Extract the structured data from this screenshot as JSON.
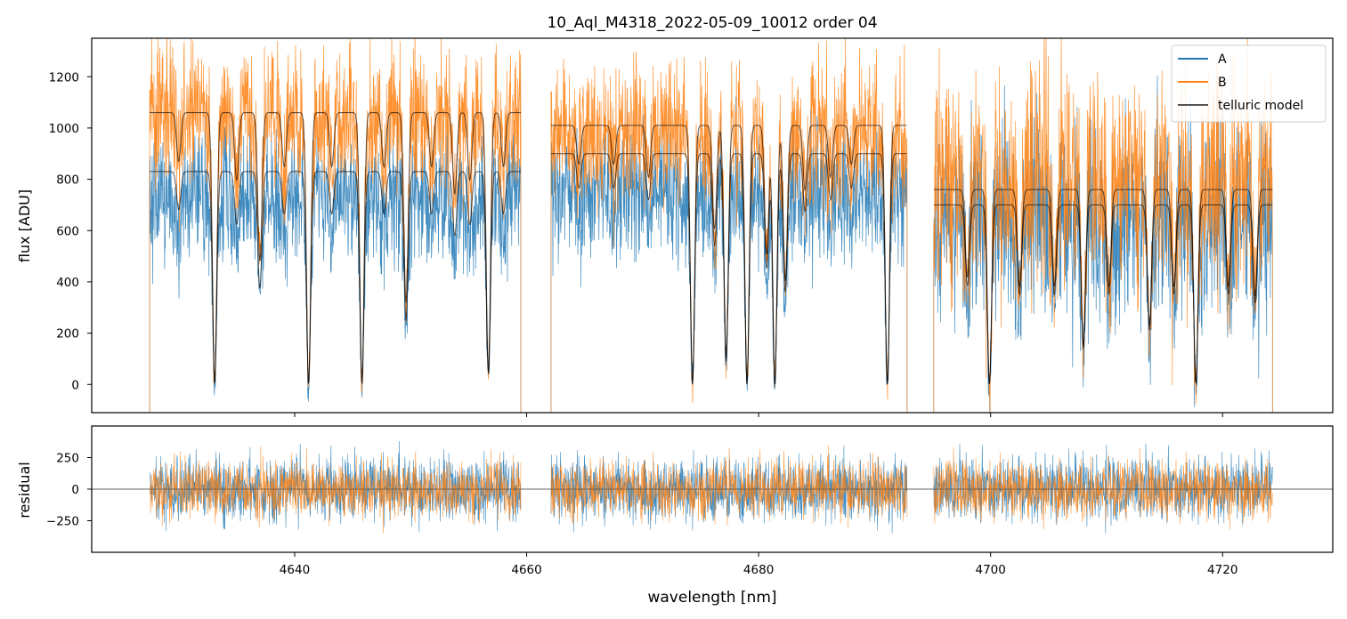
{
  "chart_data": {
    "type": "line",
    "title": "10_Aql_M4318_2022-05-09_10012  order 04",
    "xlabel": "wavelength [nm]",
    "xlim": [
      4622.5,
      4729.5
    ],
    "x_ticks": [
      4640,
      4660,
      4680,
      4700,
      4720
    ],
    "x_tick_labels": [
      "4640",
      "4660",
      "4680",
      "4700",
      "4720"
    ],
    "colors": {
      "A": "#1f77b4",
      "B": "#ff7f0e",
      "telluric model": "#000000",
      "zero_line": "#555555"
    },
    "segments": [
      [
        4627.5,
        4659.5
      ],
      [
        4662.1,
        4692.8
      ],
      [
        4695.1,
        4724.3
      ]
    ],
    "legend": {
      "placement": "top-right",
      "entries": [
        "A",
        "B",
        "telluric model"
      ]
    },
    "panels": [
      {
        "name": "flux",
        "ylabel": "flux [ADU]",
        "ylim": [
          -110,
          1350
        ],
        "y_ticks": [
          0,
          200,
          400,
          600,
          800,
          1000,
          1200
        ],
        "y_tick_labels": [
          "0",
          "200",
          "400",
          "600",
          "800",
          "1000",
          "1200"
        ],
        "series": [
          {
            "name": "A",
            "continuum_by_segment": [
              730,
              760,
              660
            ],
            "noise": 130
          },
          {
            "name": "B",
            "continuum_by_segment": [
              1050,
              990,
              820
            ],
            "noise": 140
          },
          {
            "name": "telluric model",
            "continuum_A_by_segment": [
              830,
              900,
              700
            ],
            "continuum_B_by_segment": [
              1060,
              1010,
              760
            ]
          }
        ],
        "absorption_lines": [
          {
            "x": 4630.0,
            "depth": 0.18
          },
          {
            "x": 4633.1,
            "depth": 1.0
          },
          {
            "x": 4635.0,
            "depth": 0.25
          },
          {
            "x": 4637.0,
            "depth": 0.55
          },
          {
            "x": 4639.1,
            "depth": 0.2
          },
          {
            "x": 4641.2,
            "depth": 1.0
          },
          {
            "x": 4643.2,
            "depth": 0.2
          },
          {
            "x": 4645.8,
            "depth": 1.0
          },
          {
            "x": 4647.7,
            "depth": 0.2
          },
          {
            "x": 4649.6,
            "depth": 0.7
          },
          {
            "x": 4651.8,
            "depth": 0.2
          },
          {
            "x": 4653.8,
            "depth": 0.3
          },
          {
            "x": 4655.1,
            "depth": 0.25
          },
          {
            "x": 4656.7,
            "depth": 0.95
          },
          {
            "x": 4658.0,
            "depth": 0.2
          },
          {
            "x": 4664.5,
            "depth": 0.15
          },
          {
            "x": 4667.5,
            "depth": 0.15
          },
          {
            "x": 4670.5,
            "depth": 0.2
          },
          {
            "x": 4674.3,
            "depth": 1.0
          },
          {
            "x": 4676.2,
            "depth": 0.4
          },
          {
            "x": 4677.2,
            "depth": 0.9
          },
          {
            "x": 4679.0,
            "depth": 1.0
          },
          {
            "x": 4680.7,
            "depth": 0.5
          },
          {
            "x": 4681.4,
            "depth": 1.0
          },
          {
            "x": 4682.3,
            "depth": 0.6
          },
          {
            "x": 4684.0,
            "depth": 0.25
          },
          {
            "x": 4686.2,
            "depth": 0.2
          },
          {
            "x": 4688.0,
            "depth": 0.15
          },
          {
            "x": 4691.1,
            "depth": 1.0
          },
          {
            "x": 4698.0,
            "depth": 0.45
          },
          {
            "x": 4699.9,
            "depth": 1.0
          },
          {
            "x": 4702.5,
            "depth": 0.5
          },
          {
            "x": 4705.5,
            "depth": 0.5
          },
          {
            "x": 4708.0,
            "depth": 0.8
          },
          {
            "x": 4710.2,
            "depth": 0.5
          },
          {
            "x": 4713.7,
            "depth": 0.7
          },
          {
            "x": 4715.8,
            "depth": 0.5
          },
          {
            "x": 4717.7,
            "depth": 1.0
          },
          {
            "x": 4720.5,
            "depth": 0.5
          },
          {
            "x": 4722.8,
            "depth": 0.55
          }
        ]
      },
      {
        "name": "residual",
        "ylabel": "residual",
        "ylim": [
          -500,
          500
        ],
        "y_ticks": [
          -250,
          0,
          250
        ],
        "y_tick_labels": [
          "−250",
          "0",
          "250"
        ],
        "series": [
          {
            "name": "A",
            "noise": 220
          },
          {
            "name": "B",
            "noise": 200
          }
        ]
      }
    ]
  }
}
